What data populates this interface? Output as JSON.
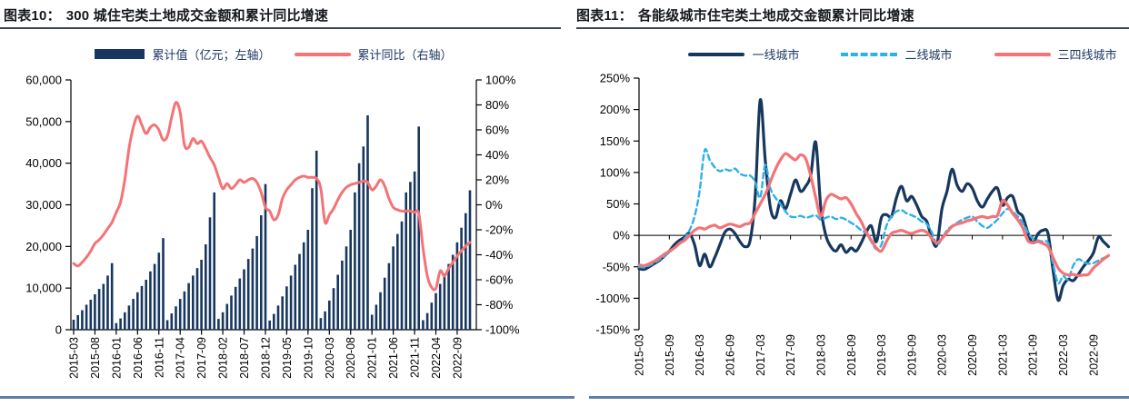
{
  "page": {
    "background": "#ffffff",
    "accent_rule_color": "#5d7fa3",
    "title_rule_color": "#3c4450"
  },
  "chart_data": [
    {
      "type": "bar+line",
      "figure_no": "图表10：",
      "title": "300 城住宅类土地成交金额和累计同比增速",
      "start_month": "2015-03",
      "points": 94,
      "x_tick_step": 5,
      "x_tick_labels": [
        "2015-03",
        "2015-08",
        "2016-01",
        "2016-06",
        "2016-11",
        "2017-04",
        "2017-09",
        "2018-02",
        "2018-07",
        "2018-12",
        "2019-05",
        "2019-10",
        "2020-03",
        "2020-08",
        "2021-01",
        "2021-06",
        "2021-11",
        "2022-04",
        "2022-09"
      ],
      "left_axis": {
        "min": 0,
        "max": 60000,
        "step": 10000,
        "tick_labels": [
          "0",
          "10,000",
          "20,000",
          "30,000",
          "40,000",
          "50,000",
          "60,000"
        ]
      },
      "right_axis": {
        "min": -100,
        "max": 100,
        "step": 20,
        "tick_labels": [
          "100%",
          "80%",
          "60%",
          "40%",
          "20%",
          "0%",
          "-20%",
          "-40%",
          "-60%",
          "-80%",
          "-100%"
        ]
      },
      "grid": false,
      "legend_position": "top",
      "series": [
        {
          "name": "累计值（亿元；左轴）",
          "type": "bar",
          "axis": "left",
          "color": "#17375E",
          "values": [
            2400,
            3500,
            4700,
            6000,
            7200,
            8500,
            9800,
            11000,
            13000,
            16000,
            1600,
            2700,
            4200,
            5800,
            7400,
            9000,
            10500,
            12000,
            14000,
            15800,
            18500,
            22000,
            2300,
            3900,
            5600,
            7400,
            9200,
            11200,
            13000,
            14800,
            16800,
            20500,
            27000,
            33000,
            2600,
            4200,
            6200,
            8200,
            10300,
            12300,
            14500,
            17000,
            19500,
            22500,
            27500,
            35000,
            2200,
            3800,
            5800,
            8000,
            10400,
            13000,
            15600,
            18200,
            21000,
            24000,
            34000,
            43000,
            2800,
            4400,
            7000,
            10000,
            13200,
            16600,
            20000,
            24000,
            33000,
            40000,
            44000,
            51500,
            3600,
            6000,
            9000,
            12500,
            16000,
            20000,
            23000,
            26000,
            33000,
            35500,
            38000,
            48800,
            2300,
            4000,
            6500,
            8800,
            11000,
            13500,
            15800,
            18000,
            21000,
            24500,
            28000,
            33500
          ]
        },
        {
          "name": "累计同比（右轴）",
          "type": "line",
          "axis": "right",
          "color": "#F47376",
          "values": [
            -47,
            -49,
            -46,
            -42,
            -37,
            -31,
            -28,
            -24,
            -19,
            -14,
            -6,
            2,
            20,
            45,
            62,
            71,
            64,
            57,
            62,
            64,
            60,
            52,
            55,
            70,
            82,
            74,
            48,
            46,
            53,
            49,
            51,
            45,
            38,
            32,
            22,
            13,
            17,
            13,
            16,
            20,
            18,
            20,
            21,
            18,
            10,
            -2,
            -5,
            -12,
            -8,
            5,
            12,
            16,
            20,
            22,
            23,
            22,
            22,
            21,
            13,
            -14,
            -8,
            -3,
            4,
            10,
            14,
            16,
            17,
            18,
            19,
            18,
            12,
            15,
            20,
            15,
            5,
            -2,
            -4,
            -5,
            -5,
            -5,
            -6,
            -7,
            -35,
            -57,
            -66,
            -67,
            -53,
            -57,
            -51,
            -46,
            -41,
            -37,
            -33,
            -30
          ]
        }
      ]
    },
    {
      "type": "line",
      "figure_no": "图表11：",
      "title": "各能级城市住宅类土地成交金额累计同比增速",
      "start_month": "2015-03",
      "points": 94,
      "x_tick_step": 6,
      "x_tick_labels": [
        "2015-03",
        "2015-09",
        "2016-03",
        "2016-09",
        "2017-03",
        "2017-09",
        "2018-03",
        "2018-09",
        "2019-03",
        "2019-09",
        "2020-03",
        "2020-09",
        "2021-03",
        "2021-09",
        "2022-03",
        "2022-09"
      ],
      "y_axis": {
        "min": -150,
        "max": 250,
        "step": 50,
        "tick_labels": [
          "250%",
          "200%",
          "150%",
          "100%",
          "50%",
          "0%",
          "-50%",
          "-100%",
          "-150%"
        ]
      },
      "grid": false,
      "zero_line": true,
      "legend_position": "top",
      "series": [
        {
          "name": "一线城市",
          "type": "line",
          "dash": false,
          "color": "#17375E",
          "values": [
            -53,
            -54,
            -50,
            -45,
            -40,
            -33,
            -25,
            -15,
            -8,
            -3,
            3,
            -15,
            -48,
            -30,
            -50,
            -35,
            -15,
            5,
            10,
            3,
            -10,
            -18,
            -8,
            60,
            215,
            120,
            45,
            28,
            55,
            42,
            65,
            88,
            70,
            78,
            95,
            148,
            45,
            0,
            -18,
            -25,
            -15,
            -27,
            -20,
            -25,
            -12,
            5,
            15,
            -10,
            28,
            33,
            30,
            60,
            78,
            55,
            62,
            48,
            30,
            22,
            -5,
            -15,
            42,
            70,
            105,
            80,
            70,
            82,
            75,
            55,
            45,
            58,
            70,
            75,
            48,
            60,
            62,
            38,
            30,
            5,
            -12,
            2,
            8,
            3,
            -55,
            -103,
            -80,
            -70,
            -72,
            -62,
            -50,
            -40,
            -28,
            -3,
            -10,
            -18
          ]
        },
        {
          "name": "二线城市",
          "type": "line",
          "dash": true,
          "color": "#2FB0E9",
          "values": [
            -50,
            -51,
            -48,
            -44,
            -39,
            -33,
            -27,
            -20,
            -12,
            -5,
            8,
            30,
            70,
            135,
            120,
            108,
            102,
            105,
            103,
            106,
            98,
            95,
            95,
            85,
            60,
            112,
            75,
            60,
            50,
            38,
            30,
            29,
            31,
            28,
            30,
            32,
            25,
            28,
            30,
            26,
            28,
            25,
            20,
            15,
            8,
            3,
            -10,
            -22,
            -15,
            15,
            30,
            38,
            40,
            35,
            32,
            28,
            22,
            18,
            5,
            -15,
            -5,
            8,
            15,
            20,
            25,
            28,
            30,
            22,
            15,
            12,
            18,
            25,
            35,
            42,
            38,
            30,
            20,
            5,
            -5,
            -8,
            -10,
            -12,
            -45,
            -76,
            -65,
            -70,
            -48,
            -38,
            -42,
            -45,
            -44,
            -40,
            -36,
            -33
          ]
        },
        {
          "name": "三四线城市",
          "type": "line",
          "dash": false,
          "color": "#F47376",
          "values": [
            -47,
            -48,
            -45,
            -41,
            -36,
            -30,
            -25,
            -20,
            -13,
            -8,
            0,
            8,
            12,
            10,
            14,
            16,
            12,
            15,
            18,
            16,
            14,
            18,
            20,
            35,
            50,
            65,
            85,
            105,
            120,
            130,
            125,
            120,
            128,
            122,
            95,
            60,
            30,
            55,
            65,
            62,
            58,
            60,
            50,
            35,
            22,
            5,
            -8,
            -20,
            -25,
            -10,
            3,
            6,
            8,
            5,
            3,
            6,
            8,
            5,
            -5,
            -12,
            -5,
            5,
            14,
            18,
            20,
            23,
            25,
            28,
            30,
            28,
            30,
            32,
            55,
            48,
            35,
            25,
            12,
            -8,
            -12,
            -10,
            -13,
            -18,
            -35,
            -52,
            -60,
            -63,
            -62,
            -64,
            -63,
            -62,
            -52,
            -45,
            -38,
            -32
          ]
        }
      ]
    }
  ]
}
